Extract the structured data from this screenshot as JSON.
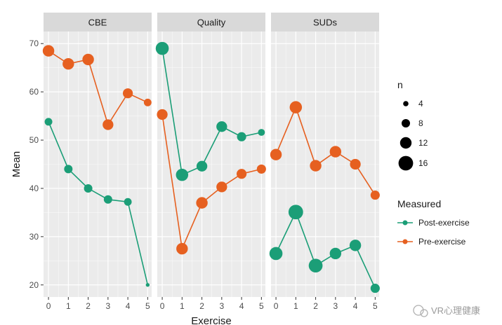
{
  "chart_data": {
    "type": "line",
    "ylabel": "Mean",
    "xlabel": "Exercise",
    "x_ticks": [
      0,
      1,
      2,
      3,
      4,
      5
    ],
    "y_ticks": [
      20,
      30,
      40,
      50,
      60,
      70
    ],
    "ylim": [
      17.5,
      72.5
    ],
    "xlim": [
      -0.25,
      5.2
    ],
    "grid": true,
    "panels": [
      {
        "strip": "CBE",
        "series": [
          {
            "name": "Post-exercise",
            "x": [
              0,
              1,
              2,
              3,
              4,
              5
            ],
            "y": [
              53.8,
              44.0,
              40.0,
              37.7,
              37.2,
              20.0
            ],
            "n": [
              7,
              8,
              8,
              8,
              7,
              2
            ]
          },
          {
            "name": "Pre-exercise",
            "x": [
              0,
              1,
              2,
              3,
              4,
              5
            ],
            "y": [
              68.5,
              65.8,
              66.7,
              53.2,
              59.7,
              57.8
            ],
            "n": [
              12,
              12,
              12,
              11,
              10,
              7
            ]
          }
        ]
      },
      {
        "strip": "Quality",
        "series": [
          {
            "name": "Post-exercise",
            "x": [
              0,
              1,
              2,
              3,
              4,
              5
            ],
            "y": [
              69.0,
              42.8,
              44.6,
              52.8,
              50.7,
              51.6
            ],
            "n": [
              14,
              13,
              11,
              11,
              9,
              6
            ]
          },
          {
            "name": "Pre-exercise",
            "x": [
              0,
              1,
              2,
              3,
              4,
              5
            ],
            "y": [
              55.3,
              27.5,
              37.0,
              40.3,
              43.0,
              44.0
            ],
            "n": [
              11,
              12,
              12,
              11,
              10,
              9
            ]
          }
        ]
      },
      {
        "strip": "SUDs",
        "series": [
          {
            "name": "Post-exercise",
            "x": [
              0,
              1,
              2,
              3,
              4,
              5
            ],
            "y": [
              26.5,
              35.1,
              24.0,
              26.5,
              28.2,
              19.3
            ],
            "n": [
              14,
              16,
              15,
              12,
              12,
              9
            ]
          },
          {
            "name": "Pre-exercise",
            "x": [
              0,
              1,
              2,
              3,
              4,
              5
            ],
            "y": [
              47.0,
              56.8,
              44.7,
              47.6,
              45.0,
              38.6
            ],
            "n": [
              12,
              13,
              12,
              12,
              11,
              9
            ]
          }
        ]
      }
    ],
    "legend": {
      "position": "right",
      "size_title": "n",
      "size_values": [
        4,
        8,
        12,
        16
      ],
      "color_title": "Measured",
      "entries": [
        {
          "name": "Post-exercise",
          "color": "#1b9e77"
        },
        {
          "name": "Pre-exercise",
          "color": "#e66020"
        }
      ]
    },
    "watermark": "VR心理健康"
  },
  "colors": {
    "post": "#1b9e77",
    "pre": "#e66020",
    "panel_bg": "#ebebeb",
    "strip_bg": "#d9d9d9",
    "grid": "#ffffff"
  }
}
